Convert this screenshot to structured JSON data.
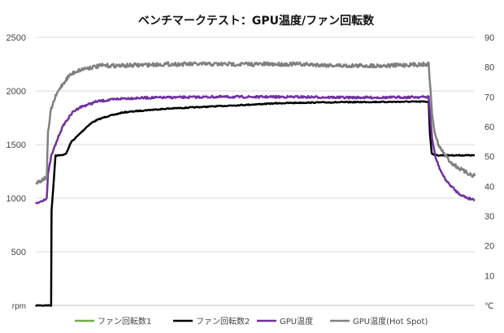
{
  "chart_data": {
    "type": "line",
    "title": "ベンチマークテスト：GPU温度/ファン回転数",
    "y_left": {
      "label": "rpm",
      "min": 0,
      "max": 2500,
      "ticks": [
        500,
        1000,
        1500,
        2000,
        2500
      ]
    },
    "y_right": {
      "label": "℃",
      "min": 0,
      "max": 90,
      "ticks": [
        10,
        20,
        30,
        40,
        50,
        60,
        70,
        80,
        90
      ]
    },
    "x": {
      "min": 0,
      "max": 100
    },
    "grid": "horizontal",
    "legend_position": "bottom",
    "series": [
      {
        "name": "ファン回転数1",
        "axis": "left",
        "color": "#70ad47",
        "width": 2,
        "points": []
      },
      {
        "name": "ファン回転数2",
        "axis": "left",
        "color": "#000000",
        "width": 2.5,
        "points": [
          [
            0,
            0
          ],
          [
            3.5,
            0
          ],
          [
            3.6,
            880
          ],
          [
            4.5,
            1400
          ],
          [
            6,
            1400
          ],
          [
            7,
            1420
          ],
          [
            8,
            1520
          ],
          [
            9,
            1560
          ],
          [
            10,
            1600
          ],
          [
            11,
            1640
          ],
          [
            12,
            1680
          ],
          [
            13,
            1710
          ],
          [
            14,
            1730
          ],
          [
            16,
            1760
          ],
          [
            18,
            1780
          ],
          [
            20,
            1800
          ],
          [
            25,
            1820
          ],
          [
            30,
            1835
          ],
          [
            35,
            1845
          ],
          [
            40,
            1855
          ],
          [
            45,
            1865
          ],
          [
            50,
            1875
          ],
          [
            55,
            1885
          ],
          [
            60,
            1890
          ],
          [
            65,
            1893
          ],
          [
            70,
            1895
          ],
          [
            75,
            1897
          ],
          [
            80,
            1898
          ],
          [
            85,
            1900
          ],
          [
            89.5,
            1900
          ],
          [
            89.8,
            1600
          ],
          [
            90.2,
            1420
          ],
          [
            91,
            1400
          ],
          [
            95,
            1400
          ],
          [
            100,
            1400
          ]
        ]
      },
      {
        "name": "GPU温度",
        "axis": "right",
        "color": "#7030a0",
        "width": 2.5,
        "points": [
          [
            0,
            34
          ],
          [
            2.5,
            36
          ],
          [
            2.8,
            44
          ],
          [
            3.5,
            50
          ],
          [
            4.5,
            54
          ],
          [
            5.5,
            58
          ],
          [
            6.5,
            61
          ],
          [
            7.5,
            63
          ],
          [
            8.5,
            65
          ],
          [
            10,
            66.5
          ],
          [
            12,
            67.5
          ],
          [
            14,
            68.5
          ],
          [
            17,
            69
          ],
          [
            20,
            69.5
          ],
          [
            25,
            69.7
          ],
          [
            30,
            69.8
          ],
          [
            40,
            70
          ],
          [
            50,
            70
          ],
          [
            60,
            70
          ],
          [
            70,
            69.8
          ],
          [
            80,
            69.8
          ],
          [
            89.5,
            70
          ],
          [
            89.8,
            65
          ],
          [
            90.3,
            56
          ],
          [
            91,
            50
          ],
          [
            92,
            46
          ],
          [
            93,
            43
          ],
          [
            94,
            41
          ],
          [
            95,
            39.5
          ],
          [
            96,
            38
          ],
          [
            97,
            37
          ],
          [
            98,
            36.3
          ],
          [
            99,
            35.8
          ],
          [
            100,
            35.5
          ]
        ]
      },
      {
        "name": "GPU温度(Hot Spot)",
        "axis": "right",
        "color": "#808080",
        "width": 2.5,
        "points": [
          [
            0,
            41
          ],
          [
            2.5,
            43
          ],
          [
            2.8,
            58
          ],
          [
            3.5,
            66
          ],
          [
            4.5,
            70
          ],
          [
            5.5,
            73
          ],
          [
            6.5,
            75
          ],
          [
            7.5,
            77
          ],
          [
            9,
            78.5
          ],
          [
            11,
            79.5
          ],
          [
            13,
            80
          ],
          [
            15,
            80.5
          ],
          [
            20,
            80.5
          ],
          [
            30,
            81
          ],
          [
            40,
            81
          ],
          [
            50,
            81
          ],
          [
            60,
            81
          ],
          [
            70,
            80.5
          ],
          [
            80,
            80.5
          ],
          [
            89.5,
            81
          ],
          [
            89.8,
            75
          ],
          [
            90.3,
            64
          ],
          [
            91,
            57
          ],
          [
            92,
            53
          ],
          [
            93,
            51
          ],
          [
            94,
            49
          ],
          [
            95,
            47.5
          ],
          [
            96,
            46.5
          ],
          [
            97,
            45.5
          ],
          [
            98,
            44.7
          ],
          [
            99,
            44
          ],
          [
            100,
            43.5
          ]
        ]
      }
    ]
  }
}
